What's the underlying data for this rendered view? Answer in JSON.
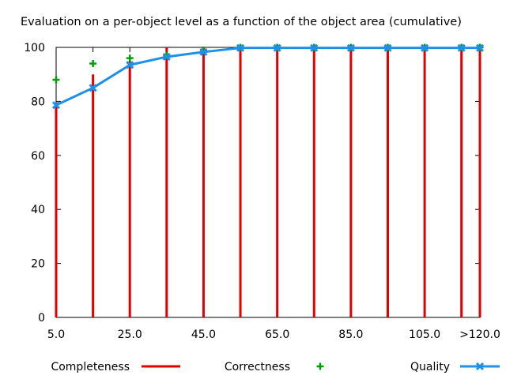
{
  "chart_data": {
    "type": "line",
    "title": "Evaluation on a per-object level as a function of the object area (cumulative)",
    "x": [
      5,
      15,
      25,
      35,
      45,
      55,
      65,
      75,
      85,
      95,
      105,
      115,
      120
    ],
    "xticks": [
      {
        "value": 5,
        "label": "5.0"
      },
      {
        "value": 25,
        "label": "25.0"
      },
      {
        "value": 45,
        "label": "45.0"
      },
      {
        "value": 65,
        "label": "65.0"
      },
      {
        "value": 85,
        "label": "85.0"
      },
      {
        "value": 105,
        "label": "105.0"
      },
      {
        "value": 120,
        "label": ">120.0"
      }
    ],
    "yticks": [
      0,
      20,
      40,
      60,
      80,
      100
    ],
    "xlim": [
      5,
      120
    ],
    "ylim": [
      0,
      100
    ],
    "grid": false,
    "legend_position": "bottom",
    "series": [
      {
        "name": "Completeness",
        "style": "impulses",
        "color": "#e00000",
        "values": [
          79,
          90,
          95,
          100,
          100,
          100,
          100,
          100,
          100,
          100,
          100,
          100,
          100
        ]
      },
      {
        "name": "Correctness",
        "style": "points",
        "color": "#00a000",
        "values": [
          88,
          94,
          96,
          97,
          99,
          100,
          100,
          100,
          100,
          100,
          100,
          100,
          100
        ]
      },
      {
        "name": "Quality",
        "style": "linespoints",
        "color": "#1e90e8",
        "values": [
          78.6,
          85,
          93.5,
          96.5,
          98.3,
          99.8,
          99.8,
          99.8,
          99.8,
          99.8,
          99.8,
          99.8,
          99.8
        ]
      }
    ]
  }
}
